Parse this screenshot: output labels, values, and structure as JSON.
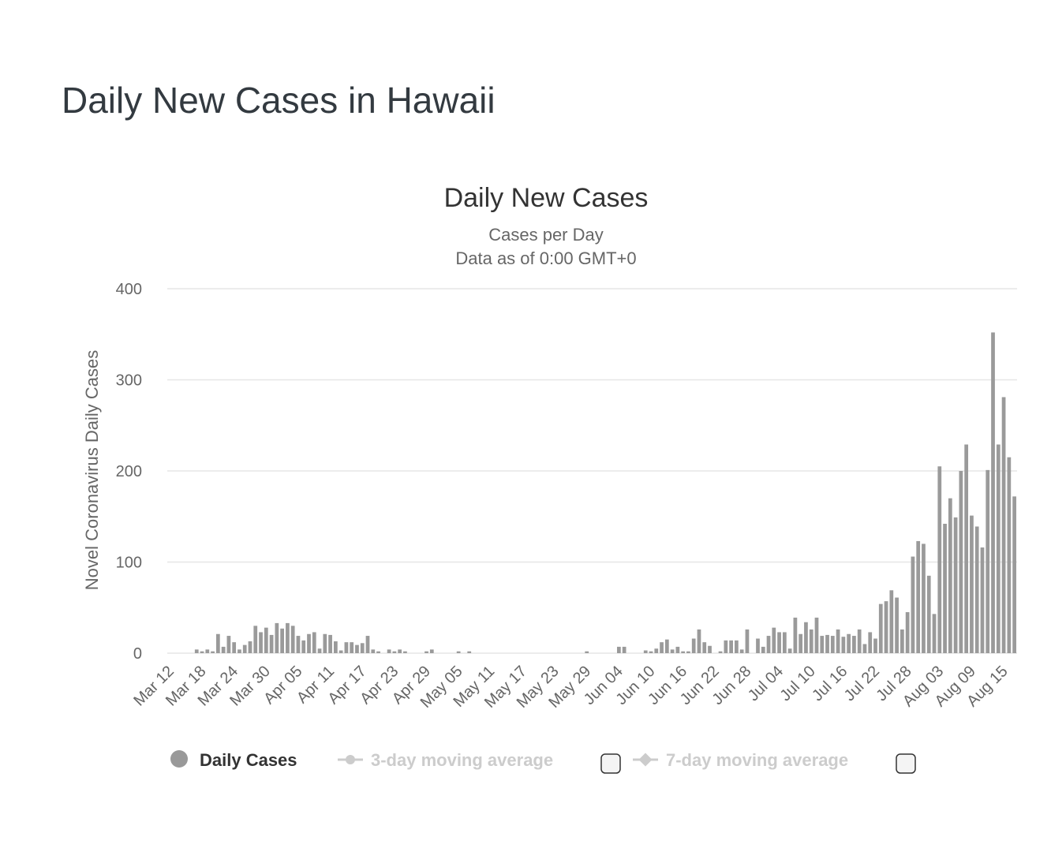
{
  "page": {
    "title": "Daily New Cases in Hawaii"
  },
  "chart_data": {
    "type": "bar",
    "title": "Daily New Cases",
    "subtitle_lines": [
      "Cases per Day",
      "Data as of 0:00 GMT+0"
    ],
    "ylabel": "Novel Coronavirus Daily Cases",
    "xlabel": "",
    "ylim": [
      0,
      400
    ],
    "yticks": [
      0,
      100,
      200,
      300,
      400
    ],
    "grid": true,
    "bar_color": "#9a9a9a",
    "start_date": "Mar 12",
    "xtick_labels": [
      "Mar 12",
      "Mar 18",
      "Mar 24",
      "Mar 30",
      "Apr 05",
      "Apr 11",
      "Apr 17",
      "Apr 23",
      "Apr 29",
      "May 05",
      "May 11",
      "May 17",
      "May 23",
      "May 29",
      "Jun 04",
      "Jun 10",
      "Jun 16",
      "Jun 22",
      "Jun 28",
      "Jul 04",
      "Jul 10",
      "Jul 16",
      "Jul 22",
      "Jul 28",
      "Aug 03",
      "Aug 09",
      "Aug 15"
    ],
    "categories": [
      "Mar 12",
      "Mar 13",
      "Mar 14",
      "Mar 15",
      "Mar 16",
      "Mar 17",
      "Mar 18",
      "Mar 19",
      "Mar 20",
      "Mar 21",
      "Mar 22",
      "Mar 23",
      "Mar 24",
      "Mar 25",
      "Mar 26",
      "Mar 27",
      "Mar 28",
      "Mar 29",
      "Mar 30",
      "Mar 31",
      "Apr 01",
      "Apr 02",
      "Apr 03",
      "Apr 04",
      "Apr 05",
      "Apr 06",
      "Apr 07",
      "Apr 08",
      "Apr 09",
      "Apr 10",
      "Apr 11",
      "Apr 12",
      "Apr 13",
      "Apr 14",
      "Apr 15",
      "Apr 16",
      "Apr 17",
      "Apr 18",
      "Apr 19",
      "Apr 20",
      "Apr 21",
      "Apr 22",
      "Apr 23",
      "Apr 24",
      "Apr 25",
      "Apr 26",
      "Apr 27",
      "Apr 28",
      "Apr 29",
      "Apr 30",
      "May 01",
      "May 02",
      "May 03",
      "May 04",
      "May 05",
      "May 06",
      "May 07",
      "May 08",
      "May 09",
      "May 10",
      "May 11",
      "May 12",
      "May 13",
      "May 14",
      "May 15",
      "May 16",
      "May 17",
      "May 18",
      "May 19",
      "May 20",
      "May 21",
      "May 22",
      "May 23",
      "May 24",
      "May 25",
      "May 26",
      "May 27",
      "May 28",
      "May 29",
      "May 30",
      "May 31",
      "Jun 01",
      "Jun 02",
      "Jun 03",
      "Jun 04",
      "Jun 05",
      "Jun 06",
      "Jun 07",
      "Jun 08",
      "Jun 09",
      "Jun 10",
      "Jun 11",
      "Jun 12",
      "Jun 13",
      "Jun 14",
      "Jun 15",
      "Jun 16",
      "Jun 17",
      "Jun 18",
      "Jun 19",
      "Jun 20",
      "Jun 21",
      "Jun 22",
      "Jun 23",
      "Jun 24",
      "Jun 25",
      "Jun 26",
      "Jun 27",
      "Jun 28",
      "Jun 29",
      "Jun 30",
      "Jul 01",
      "Jul 02",
      "Jul 03",
      "Jul 04",
      "Jul 05",
      "Jul 06",
      "Jul 07",
      "Jul 08",
      "Jul 09",
      "Jul 10",
      "Jul 11",
      "Jul 12",
      "Jul 13",
      "Jul 14",
      "Jul 15",
      "Jul 16",
      "Jul 17",
      "Jul 18",
      "Jul 19",
      "Jul 20",
      "Jul 21",
      "Jul 22",
      "Jul 23",
      "Jul 24",
      "Jul 25",
      "Jul 26",
      "Jul 27",
      "Jul 28",
      "Jul 29",
      "Jul 30",
      "Jul 31",
      "Aug 01",
      "Aug 02",
      "Aug 03",
      "Aug 04",
      "Aug 05",
      "Aug 06",
      "Aug 07",
      "Aug 08",
      "Aug 09",
      "Aug 10",
      "Aug 11",
      "Aug 12",
      "Aug 13",
      "Aug 14",
      "Aug 15",
      "Aug 16",
      "Aug 17"
    ],
    "series": [
      {
        "name": "Daily Cases",
        "values": [
          0,
          0,
          0,
          0,
          0,
          4,
          2,
          4,
          2,
          21,
          7,
          19,
          12,
          4,
          9,
          13,
          30,
          23,
          28,
          20,
          33,
          27,
          33,
          30,
          19,
          14,
          21,
          23,
          5,
          21,
          20,
          13,
          3,
          12,
          12,
          9,
          11,
          19,
          4,
          2,
          0,
          4,
          2,
          4,
          2,
          0,
          0,
          0,
          2,
          4,
          0,
          0,
          0,
          0,
          2,
          0,
          2,
          0,
          0,
          0,
          0,
          0,
          0,
          0,
          0,
          0,
          0,
          0,
          0,
          0,
          0,
          0,
          0,
          0,
          0,
          0,
          0,
          0,
          2,
          0,
          0,
          0,
          0,
          0,
          7,
          7,
          0,
          0,
          0,
          3,
          2,
          5,
          12,
          15,
          4,
          7,
          2,
          2,
          16,
          26,
          12,
          8,
          0,
          2,
          14,
          14,
          14,
          4,
          26,
          0,
          16,
          7,
          19,
          28,
          23,
          23,
          5,
          39,
          21,
          34,
          26,
          39,
          19,
          20,
          19,
          26,
          18,
          21,
          19,
          26,
          10,
          23,
          16,
          54,
          57,
          69,
          61,
          26,
          45,
          106,
          123,
          120,
          85,
          43,
          205,
          142,
          170,
          149,
          200,
          229,
          151,
          139,
          116,
          201,
          352,
          229,
          281,
          215,
          172
        ]
      }
    ],
    "legend": {
      "position": "bottom",
      "items": [
        {
          "label": "Daily Cases",
          "active": true,
          "color": "#999999"
        },
        {
          "label": "3-day moving average",
          "active": false,
          "color": "#cccccc"
        },
        {
          "label": "7-day moving average",
          "active": false,
          "color": "#cccccc"
        }
      ]
    }
  }
}
